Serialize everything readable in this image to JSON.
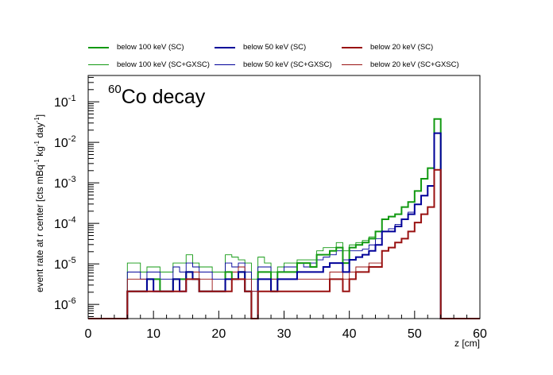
{
  "chart_data": {
    "type": "line",
    "title_isotope": "60",
    "title_rest": "Co decay",
    "xlabel": "z [cm]",
    "ylabel_parts": [
      "event rate at r center [cts mBq",
      "-1",
      " kg",
      "-1",
      " day",
      "-1",
      "]"
    ],
    "xlim": [
      0,
      60
    ],
    "ylim_log10": [
      -6.35,
      -0.35
    ],
    "x_ticks": [
      0,
      10,
      20,
      30,
      40,
      50,
      60
    ],
    "x_tick_labels": [
      "0",
      "10",
      "20",
      "30",
      "40",
      "50",
      "60"
    ],
    "y_tick_exponents": [
      -6,
      -5,
      -4,
      -3,
      -2,
      -1
    ],
    "y_tick_base": "10",
    "log_y": true,
    "grid": false,
    "legend_position": "top",
    "bin_edges": [
      0,
      1,
      2,
      3,
      4,
      5,
      6,
      7,
      8,
      9,
      10,
      11,
      12,
      13,
      14,
      15,
      16,
      17,
      18,
      19,
      20,
      21,
      22,
      23,
      24,
      25,
      26,
      27,
      28,
      29,
      30,
      31,
      32,
      33,
      34,
      35,
      36,
      37,
      38,
      39,
      40,
      41,
      42,
      43,
      44,
      45,
      46,
      47,
      48,
      49,
      50,
      51,
      52,
      53,
      54,
      55,
      56,
      57,
      58,
      59,
      60
    ],
    "series": [
      {
        "name": "below 100 keV (SC)",
        "color": "#119911",
        "style": "thick",
        "values": [
          0,
          0,
          0,
          0,
          0,
          0,
          2.1e-06,
          2.1e-06,
          2.1e-06,
          4.2e-06,
          4.2e-06,
          2.1e-06,
          2.1e-06,
          4.2e-06,
          4.2e-06,
          6.3e-06,
          4.2e-06,
          2.1e-06,
          2.1e-06,
          2.1e-06,
          2.1e-06,
          6.3e-06,
          4.2e-06,
          6.3e-06,
          2.1e-06,
          0,
          6.3e-06,
          6.3e-06,
          2.1e-06,
          6.3e-06,
          6.3e-06,
          6.3e-06,
          1.05e-05,
          1.05e-05,
          8.4e-06,
          1.68e-05,
          1.68e-05,
          2.1e-05,
          2.52e-05,
          1.05e-05,
          2.52e-05,
          2.94e-05,
          3.36e-05,
          4.2e-05,
          6.3e-05,
          0.000126,
          0.000147,
          0.000168,
          0.000252,
          0.000336,
          0.00063,
          0.00126,
          0.00231,
          0.0378,
          0,
          0,
          0,
          0,
          0,
          0
        ]
      },
      {
        "name": "below 50 keV (SC)",
        "color": "#000099",
        "style": "thick",
        "values": [
          0,
          0,
          0,
          0,
          0,
          0,
          2.1e-06,
          2.1e-06,
          2.1e-06,
          4.2e-06,
          2.1e-06,
          2.1e-06,
          2.1e-06,
          4.2e-06,
          2.1e-06,
          6.3e-06,
          4.2e-06,
          2.1e-06,
          2.1e-06,
          2.1e-06,
          2.1e-06,
          4.2e-06,
          4.2e-06,
          6.3e-06,
          2.1e-06,
          0,
          4.2e-06,
          4.2e-06,
          2.1e-06,
          4.2e-06,
          4.2e-06,
          4.2e-06,
          6.3e-06,
          6.3e-06,
          6.3e-06,
          6.3e-06,
          8.4e-06,
          1.05e-05,
          1.05e-05,
          6.3e-06,
          1.26e-05,
          1.47e-05,
          1.68e-05,
          2.1e-05,
          2.94e-05,
          6.3e-05,
          6.3e-05,
          8.4e-05,
          0.000126,
          0.000168,
          0.000294,
          0.000483,
          0.00084,
          0.0168,
          0,
          0,
          0,
          0,
          0,
          0
        ]
      },
      {
        "name": "below 20 keV (SC)",
        "color": "#991111",
        "style": "thick",
        "values": [
          0,
          0,
          0,
          0,
          0,
          0,
          2.1e-06,
          2.1e-06,
          2.1e-06,
          2.1e-06,
          2.1e-06,
          2.1e-06,
          2.1e-06,
          2.1e-06,
          2.1e-06,
          4.2e-06,
          4.2e-06,
          2.1e-06,
          2.1e-06,
          2.1e-06,
          2.1e-06,
          2.1e-06,
          4.2e-06,
          4.2e-06,
          2.1e-06,
          0,
          2.1e-06,
          2.1e-06,
          2.1e-06,
          2.1e-06,
          2.1e-06,
          2.1e-06,
          2.1e-06,
          2.1e-06,
          2.1e-06,
          2.1e-06,
          2.1e-06,
          4.2e-06,
          4.2e-06,
          2.1e-06,
          4.2e-06,
          6.3e-06,
          6.3e-06,
          8.4e-06,
          8.4e-06,
          2.1e-05,
          2.52e-05,
          3.36e-05,
          4.2e-05,
          6.3e-05,
          0.000105,
          0.000168,
          0.000252,
          0.0021,
          0,
          0,
          0,
          0,
          0,
          0
        ]
      },
      {
        "name": "below 100 keV (SC+GXSC)",
        "color": "#119911",
        "style": "thin",
        "values": [
          0,
          0,
          0,
          0,
          0,
          0,
          1.05e-05,
          1.05e-05,
          6.3e-06,
          8.4e-06,
          8.4e-06,
          6.3e-06,
          6.3e-06,
          1.05e-05,
          1.05e-05,
          1.68e-05,
          1.05e-05,
          8.4e-06,
          8.4e-06,
          6.3e-06,
          6.3e-06,
          1.68e-05,
          1.47e-05,
          1.26e-05,
          1.05e-05,
          4.2e-06,
          1.47e-05,
          1.05e-05,
          6.3e-06,
          8.4e-06,
          1.05e-05,
          1.05e-05,
          1.26e-05,
          1.26e-05,
          1.26e-05,
          2.1e-05,
          2.52e-05,
          2.52e-05,
          3.36e-05,
          2.1e-05,
          2.94e-05,
          3.36e-05,
          3.78e-05,
          4.62e-05,
          6.3e-05,
          0.000126,
          0.000147,
          0.000168,
          0.000252,
          0.000336,
          0.00063,
          0.00126,
          0.00231,
          0.0378,
          0,
          0,
          0,
          0,
          0,
          0
        ]
      },
      {
        "name": "below 50 keV (SC+GXSC)",
        "color": "#000099",
        "style": "thin",
        "values": [
          0,
          0,
          0,
          0,
          0,
          0,
          6.3e-06,
          6.3e-06,
          4.2e-06,
          6.3e-06,
          6.3e-06,
          4.2e-06,
          4.2e-06,
          8.4e-06,
          6.3e-06,
          1.05e-05,
          8.4e-06,
          6.3e-06,
          6.3e-06,
          4.2e-06,
          4.2e-06,
          1.05e-05,
          8.4e-06,
          1.05e-05,
          6.3e-06,
          2.1e-06,
          8.4e-06,
          8.4e-06,
          4.2e-06,
          6.3e-06,
          8.4e-06,
          8.4e-06,
          1.05e-05,
          8.4e-06,
          1.05e-05,
          1.26e-05,
          1.47e-05,
          1.68e-05,
          2.1e-05,
          1.26e-05,
          2.1e-05,
          2.1e-05,
          2.31e-05,
          2.94e-05,
          4.2e-05,
          6.3e-05,
          7.35e-05,
          9.45e-05,
          0.000126,
          0.000189,
          0.000294,
          0.000483,
          0.00084,
          0.0168,
          0,
          0,
          0,
          0,
          0,
          0
        ]
      },
      {
        "name": "below 20 keV (SC+GXSC)",
        "color": "#991111",
        "style": "thin",
        "values": [
          0,
          0,
          0,
          0,
          0,
          0,
          4.2e-06,
          4.2e-06,
          4.2e-06,
          4.2e-06,
          4.2e-06,
          2.1e-06,
          2.1e-06,
          4.2e-06,
          4.2e-06,
          6.3e-06,
          6.3e-06,
          4.2e-06,
          4.2e-06,
          2.1e-06,
          2.1e-06,
          6.3e-06,
          6.3e-06,
          8.4e-06,
          4.2e-06,
          2.1e-06,
          6.3e-06,
          6.3e-06,
          4.2e-06,
          4.2e-06,
          4.2e-06,
          4.2e-06,
          4.2e-06,
          4.2e-06,
          4.2e-06,
          4.2e-06,
          4.2e-06,
          6.3e-06,
          6.3e-06,
          4.2e-06,
          6.3e-06,
          8.4e-06,
          8.4e-06,
          1.05e-05,
          1.05e-05,
          2.1e-05,
          2.52e-05,
          3.36e-05,
          4.2e-05,
          6.3e-05,
          0.000105,
          0.000168,
          0.000252,
          0.0021,
          0,
          0,
          0,
          0,
          0,
          0
        ]
      }
    ]
  }
}
